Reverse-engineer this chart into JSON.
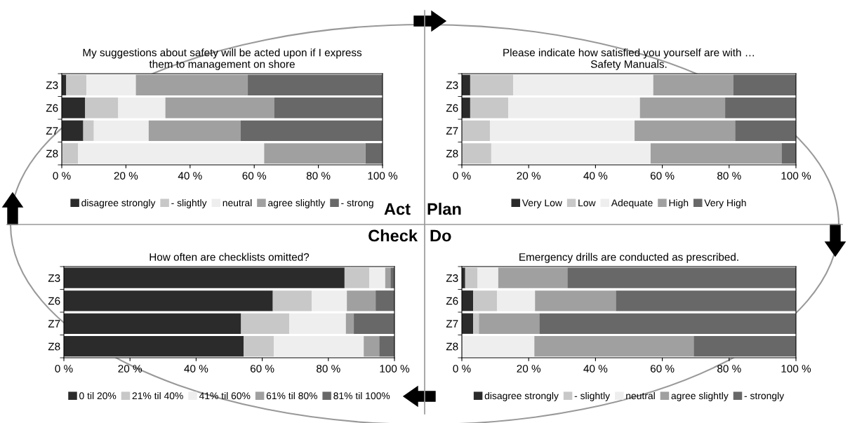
{
  "chart_data": [
    {
      "type": "bar",
      "orientation": "horizontal",
      "stacked": true,
      "title": "My suggestions about safety will be acted upon if I express\nthem to management on shore",
      "categories": [
        "Z3",
        "Z6",
        "Z7",
        "Z8"
      ],
      "xlim": [
        0,
        100
      ],
      "xticks": [
        {
          "value": 0,
          "label": "0 %"
        },
        {
          "value": 20,
          "label": "20 %"
        },
        {
          "value": 40,
          "label": "40 %"
        },
        {
          "value": 60,
          "label": "60 %"
        },
        {
          "value": 80,
          "label": "80 %"
        },
        {
          "value": 100,
          "label": "100 %"
        }
      ],
      "legend": "bottom",
      "series": [
        {
          "name": "disagree strongly",
          "color": "#2b2b2b",
          "values": [
            1.4,
            7.3,
            6.7,
            0
          ]
        },
        {
          "name": "- slightly",
          "color": "#c8c8c8",
          "values": [
            6.3,
            10.3,
            3.3,
            5.1
          ]
        },
        {
          "name": "neutral",
          "color": "#eeeeee",
          "values": [
            15.4,
            14.7,
            17.1,
            58.0
          ]
        },
        {
          "name": "agree slightly",
          "color": "#a0a0a0",
          "values": [
            34.9,
            33.9,
            28.7,
            31.6
          ]
        },
        {
          "name": "- strong",
          "color": "#686868",
          "values": [
            42.0,
            33.8,
            44.2,
            5.3
          ]
        }
      ]
    },
    {
      "type": "bar",
      "orientation": "horizontal",
      "stacked": true,
      "title": "Please indicate how satisfied you yourself are with …\nSafety Manuals.",
      "categories": [
        "Z3",
        "Z6",
        "Z7",
        "Z8"
      ],
      "xlim": [
        0,
        100
      ],
      "xticks": [
        {
          "value": 0,
          "label": "0 %"
        },
        {
          "value": 20,
          "label": "20 %"
        },
        {
          "value": 40,
          "label": "40 %"
        },
        {
          "value": 60,
          "label": "60 %"
        },
        {
          "value": 80,
          "label": "80 %"
        },
        {
          "value": 100,
          "label": "100 %"
        }
      ],
      "legend": "bottom",
      "series": [
        {
          "name": "Very Low",
          "color": "#2b2b2b",
          "values": [
            2.5,
            2.5,
            0,
            0
          ]
        },
        {
          "name": "Low",
          "color": "#c8c8c8",
          "values": [
            12.9,
            11.4,
            8.4,
            8.8
          ]
        },
        {
          "name": "Adequate",
          "color": "#eeeeee",
          "values": [
            41.9,
            39.4,
            43.3,
            47.7
          ]
        },
        {
          "name": "High",
          "color": "#a0a0a0",
          "values": [
            24.0,
            25.5,
            30.1,
            39.2
          ]
        },
        {
          "name": "Very High",
          "color": "#686868",
          "values": [
            18.7,
            21.2,
            18.2,
            4.3
          ]
        }
      ]
    },
    {
      "type": "bar",
      "orientation": "horizontal",
      "stacked": true,
      "title": "How often are checklists omitted?",
      "categories": [
        "Z3",
        "Z6",
        "Z7",
        "Z8"
      ],
      "xlim": [
        0,
        100
      ],
      "xticks": [
        {
          "value": 0,
          "label": "0 %"
        },
        {
          "value": 20,
          "label": "20 %"
        },
        {
          "value": 40,
          "label": "40 %"
        },
        {
          "value": 60,
          "label": "60 %"
        },
        {
          "value": 80,
          "label": "80 %"
        },
        {
          "value": 100,
          "label": "100 %"
        }
      ],
      "legend": "bottom",
      "series": [
        {
          "name": "0 til 20%",
          "color": "#2b2b2b",
          "values": [
            84.9,
            63.2,
            53.6,
            54.4
          ]
        },
        {
          "name": "21% til 40%",
          "color": "#c8c8c8",
          "values": [
            7.5,
            11.8,
            14.6,
            9.1
          ]
        },
        {
          "name": "41% til 60%",
          "color": "#eeeeee",
          "values": [
            4.8,
            10.6,
            17.1,
            27.2
          ]
        },
        {
          "name": "61% til 80%",
          "color": "#a0a0a0",
          "values": [
            1.6,
            8.7,
            2.4,
            4.7
          ]
        },
        {
          "name": "81% til 100%",
          "color": "#686868",
          "values": [
            1.2,
            5.7,
            12.3,
            4.6
          ]
        }
      ]
    },
    {
      "type": "bar",
      "orientation": "horizontal",
      "stacked": true,
      "title": "Emergency drills are conducted as prescribed.",
      "categories": [
        "Z3",
        "Z6",
        "Z7",
        "Z8"
      ],
      "xlim": [
        0,
        100
      ],
      "xticks": [
        {
          "value": 0,
          "label": "0 %"
        },
        {
          "value": 20,
          "label": "20 %"
        },
        {
          "value": 40,
          "label": "40 %"
        },
        {
          "value": 60,
          "label": "60 %"
        },
        {
          "value": 80,
          "label": "80 %"
        },
        {
          "value": 100,
          "label": "100 %"
        }
      ],
      "legend": "bottom",
      "series": [
        {
          "name": "disagree strongly",
          "color": "#2b2b2b",
          "values": [
            1.0,
            3.4,
            3.4,
            0
          ]
        },
        {
          "name": "- slightly",
          "color": "#c8c8c8",
          "values": [
            3.7,
            7.1,
            1.7,
            0
          ]
        },
        {
          "name": "neutral",
          "color": "#eeeeee",
          "values": [
            6.2,
            11.4,
            0,
            21.7
          ]
        },
        {
          "name": "agree slightly",
          "color": "#a0a0a0",
          "values": [
            20.7,
            24.2,
            18.1,
            47.7
          ]
        },
        {
          "name": "- strongly",
          "color": "#686868",
          "values": [
            68.4,
            53.9,
            76.8,
            30.6
          ]
        }
      ]
    },
    {
      "type": "other",
      "annotations": [
        "Act",
        "Plan",
        "Check",
        "Do"
      ]
    }
  ]
}
